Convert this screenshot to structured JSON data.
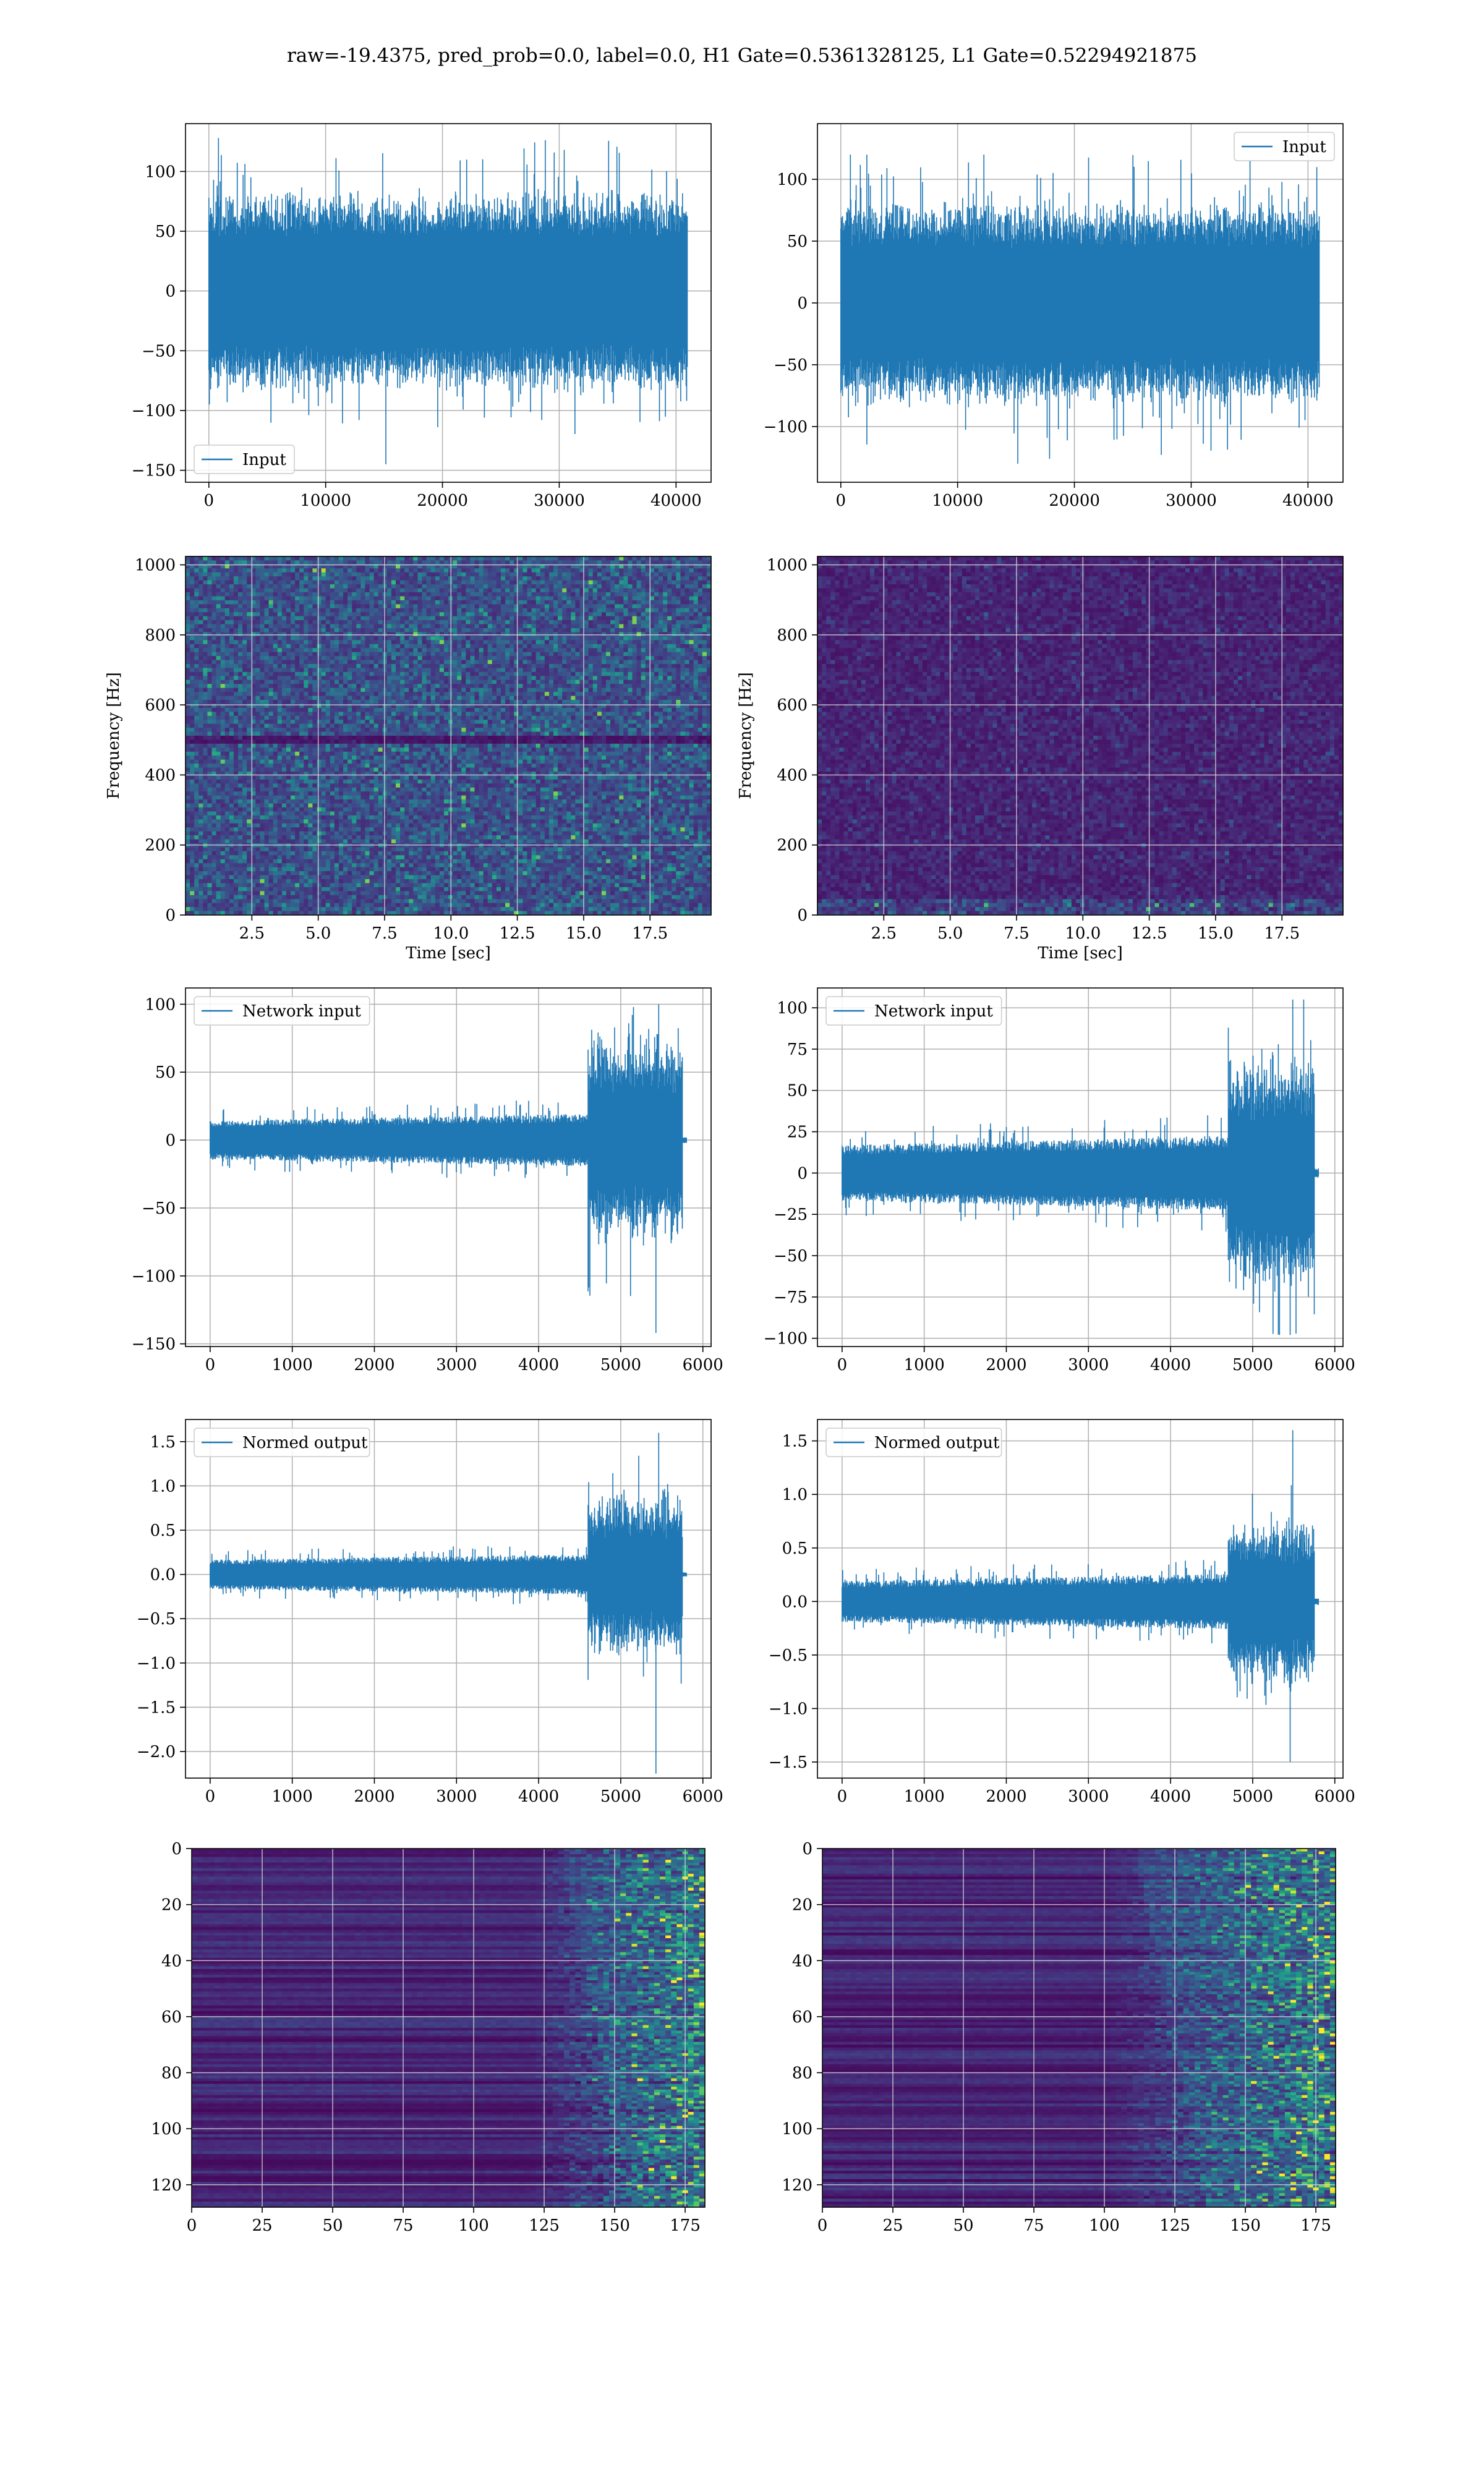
{
  "figure_title": "raw=-19.4375, pred_prob=0.0, label=0.0, H1 Gate=0.5361328125, L1 Gate=0.52294921875",
  "colors": {
    "series": "#1f77b4",
    "axes": "#000000",
    "grid": "#b0b0b0",
    "viridis_low": "#440154",
    "viridis_high": "#fde725"
  },
  "chart_data": [
    {
      "id": "h1-raw",
      "type": "line",
      "title": "",
      "xlabel": "",
      "ylabel": "",
      "legend": {
        "label": "Input",
        "placement": "lower-left"
      },
      "xlim": [
        -2000,
        43000
      ],
      "ylim": [
        -160,
        140
      ],
      "xticks": [
        0,
        10000,
        20000,
        30000,
        40000
      ],
      "xtick_labels": [
        "0",
        "10000",
        "20000",
        "30000",
        "40000"
      ],
      "yticks": [
        -150,
        -100,
        -50,
        0,
        50,
        100
      ],
      "ytick_labels": [
        "−150",
        "−100",
        "−50",
        "0",
        "50",
        "100"
      ],
      "signal": {
        "n": 40960,
        "typical_amplitude": 65,
        "max": 128,
        "min": -145
      },
      "grid": true
    },
    {
      "id": "l1-raw",
      "type": "line",
      "title": "",
      "xlabel": "",
      "ylabel": "",
      "legend": {
        "label": "Input",
        "placement": "upper-right"
      },
      "xlim": [
        -2000,
        43000
      ],
      "ylim": [
        -145,
        145
      ],
      "xticks": [
        0,
        10000,
        20000,
        30000,
        40000
      ],
      "xtick_labels": [
        "0",
        "10000",
        "20000",
        "30000",
        "40000"
      ],
      "yticks": [
        -100,
        -50,
        0,
        50,
        100
      ],
      "ytick_labels": [
        "−100",
        "−50",
        "0",
        "50",
        "100"
      ],
      "signal": {
        "n": 40960,
        "typical_amplitude": 65,
        "max": 120,
        "min": -130
      },
      "grid": true
    },
    {
      "id": "h1-spectrogram",
      "type": "heatmap",
      "title": "",
      "xlabel": "Time [sec]",
      "ylabel": "Frequency [Hz]",
      "xlim": [
        0,
        19.8
      ],
      "ylim": [
        0,
        1024
      ],
      "xticks": [
        2.5,
        5.0,
        7.5,
        10.0,
        12.5,
        15.0,
        17.5
      ],
      "xtick_labels": [
        "2.5",
        "5.0",
        "7.5",
        "10.0",
        "12.5",
        "15.0",
        "17.5"
      ],
      "yticks": [
        0,
        200,
        400,
        600,
        800,
        1000
      ],
      "ytick_labels": [
        "0",
        "200",
        "400",
        "600",
        "800",
        "1000"
      ],
      "colormap": "viridis",
      "grid": true
    },
    {
      "id": "l1-spectrogram",
      "type": "heatmap",
      "title": "",
      "xlabel": "Time [sec]",
      "ylabel": "Frequency [Hz]",
      "xlim": [
        0,
        19.8
      ],
      "ylim": [
        0,
        1024
      ],
      "xticks": [
        2.5,
        5.0,
        7.5,
        10.0,
        12.5,
        15.0,
        17.5
      ],
      "xtick_labels": [
        "2.5",
        "5.0",
        "7.5",
        "10.0",
        "12.5",
        "15.0",
        "17.5"
      ],
      "yticks": [
        0,
        200,
        400,
        600,
        800,
        1000
      ],
      "ytick_labels": [
        "0",
        "200",
        "400",
        "600",
        "800",
        "1000"
      ],
      "colormap": "viridis",
      "grid": true
    },
    {
      "id": "h1-network-input",
      "type": "line",
      "title": "",
      "xlabel": "",
      "ylabel": "",
      "legend": {
        "label": "Network input",
        "placement": "upper-left"
      },
      "xlim": [
        -300,
        6100
      ],
      "ylim": [
        -152,
        112
      ],
      "xticks": [
        0,
        1000,
        2000,
        3000,
        4000,
        5000,
        6000
      ],
      "xtick_labels": [
        "0",
        "1000",
        "2000",
        "3000",
        "4000",
        "5000",
        "6000"
      ],
      "yticks": [
        -150,
        -100,
        -50,
        0,
        50,
        100
      ],
      "ytick_labels": [
        "−150",
        "−100",
        "−50",
        "0",
        "50",
        "100"
      ],
      "signal": {
        "n": 5800,
        "base_amplitude": 12,
        "burst_start": 4600,
        "burst_end": 5750,
        "burst_amplitude": 55,
        "max": 100,
        "min": -142
      },
      "grid": true
    },
    {
      "id": "l1-network-input",
      "type": "line",
      "title": "",
      "xlabel": "",
      "ylabel": "",
      "legend": {
        "label": "Network input",
        "placement": "upper-left"
      },
      "xlim": [
        -300,
        6100
      ],
      "ylim": [
        -105,
        112
      ],
      "xticks": [
        0,
        1000,
        2000,
        3000,
        4000,
        5000,
        6000
      ],
      "xtick_labels": [
        "0",
        "1000",
        "2000",
        "3000",
        "4000",
        "5000",
        "6000"
      ],
      "yticks": [
        -100,
        -75,
        -50,
        -25,
        0,
        25,
        50,
        75,
        100
      ],
      "ytick_labels": [
        "−100",
        "−75",
        "−50",
        "−25",
        "0",
        "25",
        "50",
        "75",
        "100"
      ],
      "signal": {
        "n": 5800,
        "base_amplitude": 14,
        "burst_start": 4700,
        "burst_end": 5750,
        "burst_amplitude": 50,
        "max": 105,
        "min": -98
      },
      "grid": true
    },
    {
      "id": "h1-normed-output",
      "type": "line",
      "title": "",
      "xlabel": "",
      "ylabel": "",
      "legend": {
        "label": "Normed output",
        "placement": "upper-left"
      },
      "xlim": [
        -300,
        6100
      ],
      "ylim": [
        -2.3,
        1.75
      ],
      "xticks": [
        0,
        1000,
        2000,
        3000,
        4000,
        5000,
        6000
      ],
      "xtick_labels": [
        "0",
        "1000",
        "2000",
        "3000",
        "4000",
        "5000",
        "6000"
      ],
      "yticks": [
        -2.0,
        -1.5,
        -1.0,
        -0.5,
        0.0,
        0.5,
        1.0,
        1.5
      ],
      "ytick_labels": [
        "−2.0",
        "−1.5",
        "−1.0",
        "−0.5",
        "0.0",
        "0.5",
        "1.0",
        "1.5"
      ],
      "signal": {
        "n": 5800,
        "base_amplitude": 0.14,
        "burst_start": 4600,
        "burst_end": 5750,
        "burst_amplitude": 0.65,
        "max": 1.6,
        "min": -2.25
      },
      "grid": true
    },
    {
      "id": "l1-normed-output",
      "type": "line",
      "title": "",
      "xlabel": "",
      "ylabel": "",
      "legend": {
        "label": "Normed output",
        "placement": "upper-left"
      },
      "xlim": [
        -300,
        6100
      ],
      "ylim": [
        -1.65,
        1.7
      ],
      "xticks": [
        0,
        1000,
        2000,
        3000,
        4000,
        5000,
        6000
      ],
      "xtick_labels": [
        "0",
        "1000",
        "2000",
        "3000",
        "4000",
        "5000",
        "6000"
      ],
      "yticks": [
        -1.5,
        -1.0,
        -0.5,
        0.0,
        0.5,
        1.0,
        1.5
      ],
      "ytick_labels": [
        "−1.5",
        "−1.0",
        "−0.5",
        "0.0",
        "0.5",
        "1.0",
        "1.5"
      ],
      "signal": {
        "n": 5800,
        "base_amplitude": 0.16,
        "burst_start": 4700,
        "burst_end": 5750,
        "burst_amplitude": 0.55,
        "max": 1.6,
        "min": -1.5
      },
      "grid": true
    },
    {
      "id": "h1-feature-map",
      "type": "heatmap",
      "title": "",
      "xlabel": "",
      "ylabel": "",
      "xlim": [
        0,
        182
      ],
      "ylim": [
        128,
        0
      ],
      "xticks": [
        0,
        25,
        50,
        75,
        100,
        125,
        150,
        175
      ],
      "xtick_labels": [
        "0",
        "25",
        "50",
        "75",
        "100",
        "125",
        "150",
        "175"
      ],
      "yticks": [
        0,
        20,
        40,
        60,
        80,
        100,
        120
      ],
      "ytick_labels": [
        "0",
        "20",
        "40",
        "60",
        "80",
        "100",
        "120"
      ],
      "colormap": "viridis",
      "activity_onset": 120,
      "grid": true
    },
    {
      "id": "l1-feature-map",
      "type": "heatmap",
      "title": "",
      "xlabel": "",
      "ylabel": "",
      "xlim": [
        0,
        182
      ],
      "ylim": [
        128,
        0
      ],
      "xticks": [
        0,
        25,
        50,
        75,
        100,
        125,
        150,
        175
      ],
      "xtick_labels": [
        "0",
        "25",
        "50",
        "75",
        "100",
        "125",
        "150",
        "175"
      ],
      "yticks": [
        0,
        20,
        40,
        60,
        80,
        100,
        120
      ],
      "ytick_labels": [
        "0",
        "20",
        "40",
        "60",
        "80",
        "100",
        "120"
      ],
      "colormap": "viridis",
      "activity_onset": 100,
      "grid": true
    }
  ]
}
